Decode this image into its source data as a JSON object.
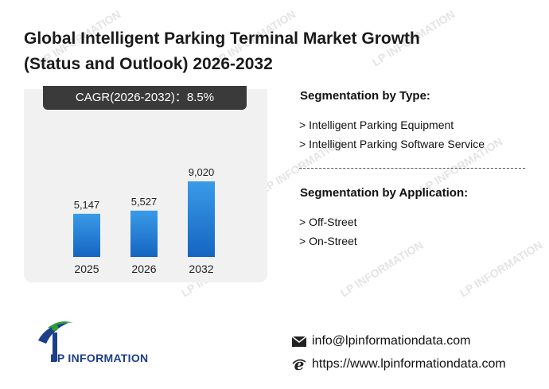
{
  "header": {
    "title_line1": "Global Intelligent Parking Terminal Market Growth",
    "title_line2": "(Status and Outlook) 2026-2032"
  },
  "cagr": {
    "label": "CAGR(2026-2032)：",
    "value": "8.5%"
  },
  "chart_data": {
    "type": "bar",
    "categories": [
      "2025",
      "2026",
      "2032"
    ],
    "values": [
      5147,
      5527,
      9020
    ],
    "value_labels": [
      "5,147",
      "5,527",
      "9,020"
    ],
    "title": "",
    "xlabel": "",
    "ylabel": "",
    "ylim": [
      0,
      9020
    ],
    "grid": false,
    "bar_color_top": "#3a9ae8",
    "bar_color_bottom": "#1565c0"
  },
  "segmentation": {
    "type_title": "Segmentation by Type:",
    "type_items": [
      "> Intelligent Parking Equipment",
      "> Intelligent Parking Software Service"
    ],
    "application_title": "Segmentation by Application:",
    "application_items": [
      "> Off-Street",
      "> On-Street"
    ]
  },
  "brand": {
    "logo_text": "LP INFORMATION",
    "watermark_text": "LP INFORMATION",
    "colors": {
      "blue": "#1d3f8a",
      "green": "#2e9e3a"
    }
  },
  "contact": {
    "email": "info@lpinformationdata.com",
    "email_icon": "envelope-icon",
    "website": "https://www.lpinformationdata.com",
    "website_icon": "ie-browser-icon"
  }
}
